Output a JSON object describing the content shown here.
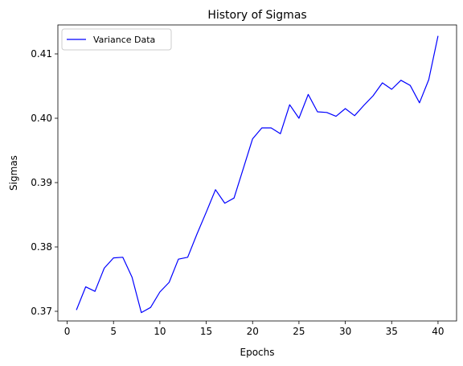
{
  "chart_data": {
    "type": "line",
    "title": "History of Sigmas",
    "xlabel": "Epochs",
    "ylabel": "Sigmas",
    "xlim": [
      -1,
      42
    ],
    "ylim": [
      0.3685,
      0.4145
    ],
    "xticks": [
      0,
      5,
      10,
      15,
      20,
      25,
      30,
      35,
      40
    ],
    "yticks": [
      0.37,
      0.38,
      0.39,
      0.4,
      0.41
    ],
    "ytick_labels": [
      "0.37",
      "0.38",
      "0.39",
      "0.40",
      "0.41"
    ],
    "grid": false,
    "legend_position": "upper-left",
    "series": [
      {
        "name": "Variance Data",
        "color": "#0000ff",
        "x": [
          1,
          2,
          3,
          4,
          5,
          6,
          7,
          8,
          9,
          10,
          11,
          12,
          13,
          14,
          15,
          16,
          17,
          18,
          19,
          20,
          21,
          22,
          23,
          24,
          25,
          26,
          27,
          28,
          29,
          30,
          31,
          32,
          33,
          34,
          35,
          36,
          37,
          38,
          39,
          40
        ],
        "y": [
          0.3702,
          0.3738,
          0.3731,
          0.3767,
          0.3783,
          0.3784,
          0.3753,
          0.3698,
          0.3706,
          0.373,
          0.3745,
          0.3781,
          0.3784,
          0.382,
          0.3854,
          0.3889,
          0.3868,
          0.3876,
          0.3922,
          0.3968,
          0.3985,
          0.3985,
          0.3976,
          0.4021,
          0.4,
          0.4037,
          0.401,
          0.4009,
          0.4003,
          0.4015,
          0.4004,
          0.402,
          0.4035,
          0.4055,
          0.4045,
          0.4059,
          0.4051,
          0.4024,
          0.406,
          0.4128
        ]
      }
    ]
  }
}
